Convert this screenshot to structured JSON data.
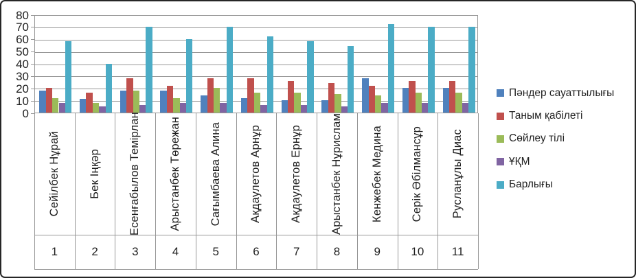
{
  "chart_data": {
    "type": "bar",
    "title": "",
    "xlabel": "",
    "ylabel": "",
    "grid": true,
    "legend_position": "right",
    "y_axis": {
      "min": 0,
      "max": 80,
      "step": 10,
      "tick_labels": [
        "0",
        "10",
        "20",
        "30",
        "40",
        "50",
        "60",
        "70",
        "80"
      ]
    },
    "category_numbers": [
      "1",
      "2",
      "3",
      "4",
      "5",
      "6",
      "7",
      "8",
      "9",
      "10",
      "11"
    ],
    "categories": [
      "Сейілбек Нұрай",
      "Бек Іңқәр",
      "Есенғабылов Темірлан",
      "Арыстанбек Төрежан",
      "Сағымбаева Алина",
      "Ақдаулетов Арнұр",
      "Ақдаулетов Ернұр",
      "Арыстанбек Нұрислам",
      "Кенжебек Медина",
      "Серік Әбілмансұр",
      "Русланұлы Диас"
    ],
    "series": [
      {
        "name": "Пәндер сауаттылығы",
        "color": "#4F81BD",
        "values": [
          18,
          11,
          18,
          18,
          14,
          12,
          10,
          10,
          28,
          20,
          20
        ]
      },
      {
        "name": "Таным қабілеті",
        "color": "#C0504D",
        "values": [
          20,
          16,
          28,
          22,
          28,
          28,
          26,
          24,
          22,
          26,
          26
        ]
      },
      {
        "name": "Сөйлеу тілі",
        "color": "#9BBB59",
        "values": [
          12,
          8,
          18,
          12,
          20,
          16,
          16,
          15,
          14,
          16,
          16
        ]
      },
      {
        "name": "ҰҚМ",
        "color": "#8064A2",
        "values": [
          8,
          5,
          6,
          8,
          8,
          6,
          6,
          5,
          8,
          8,
          8
        ]
      },
      {
        "name": "Барлығы",
        "color": "#4BACC6",
        "values": [
          58,
          40,
          70,
          60,
          70,
          62,
          58,
          54,
          72,
          70,
          70
        ]
      }
    ],
    "line_color": "#969696",
    "text_color": "#1f1f1f",
    "background_color": "#ffffff"
  }
}
